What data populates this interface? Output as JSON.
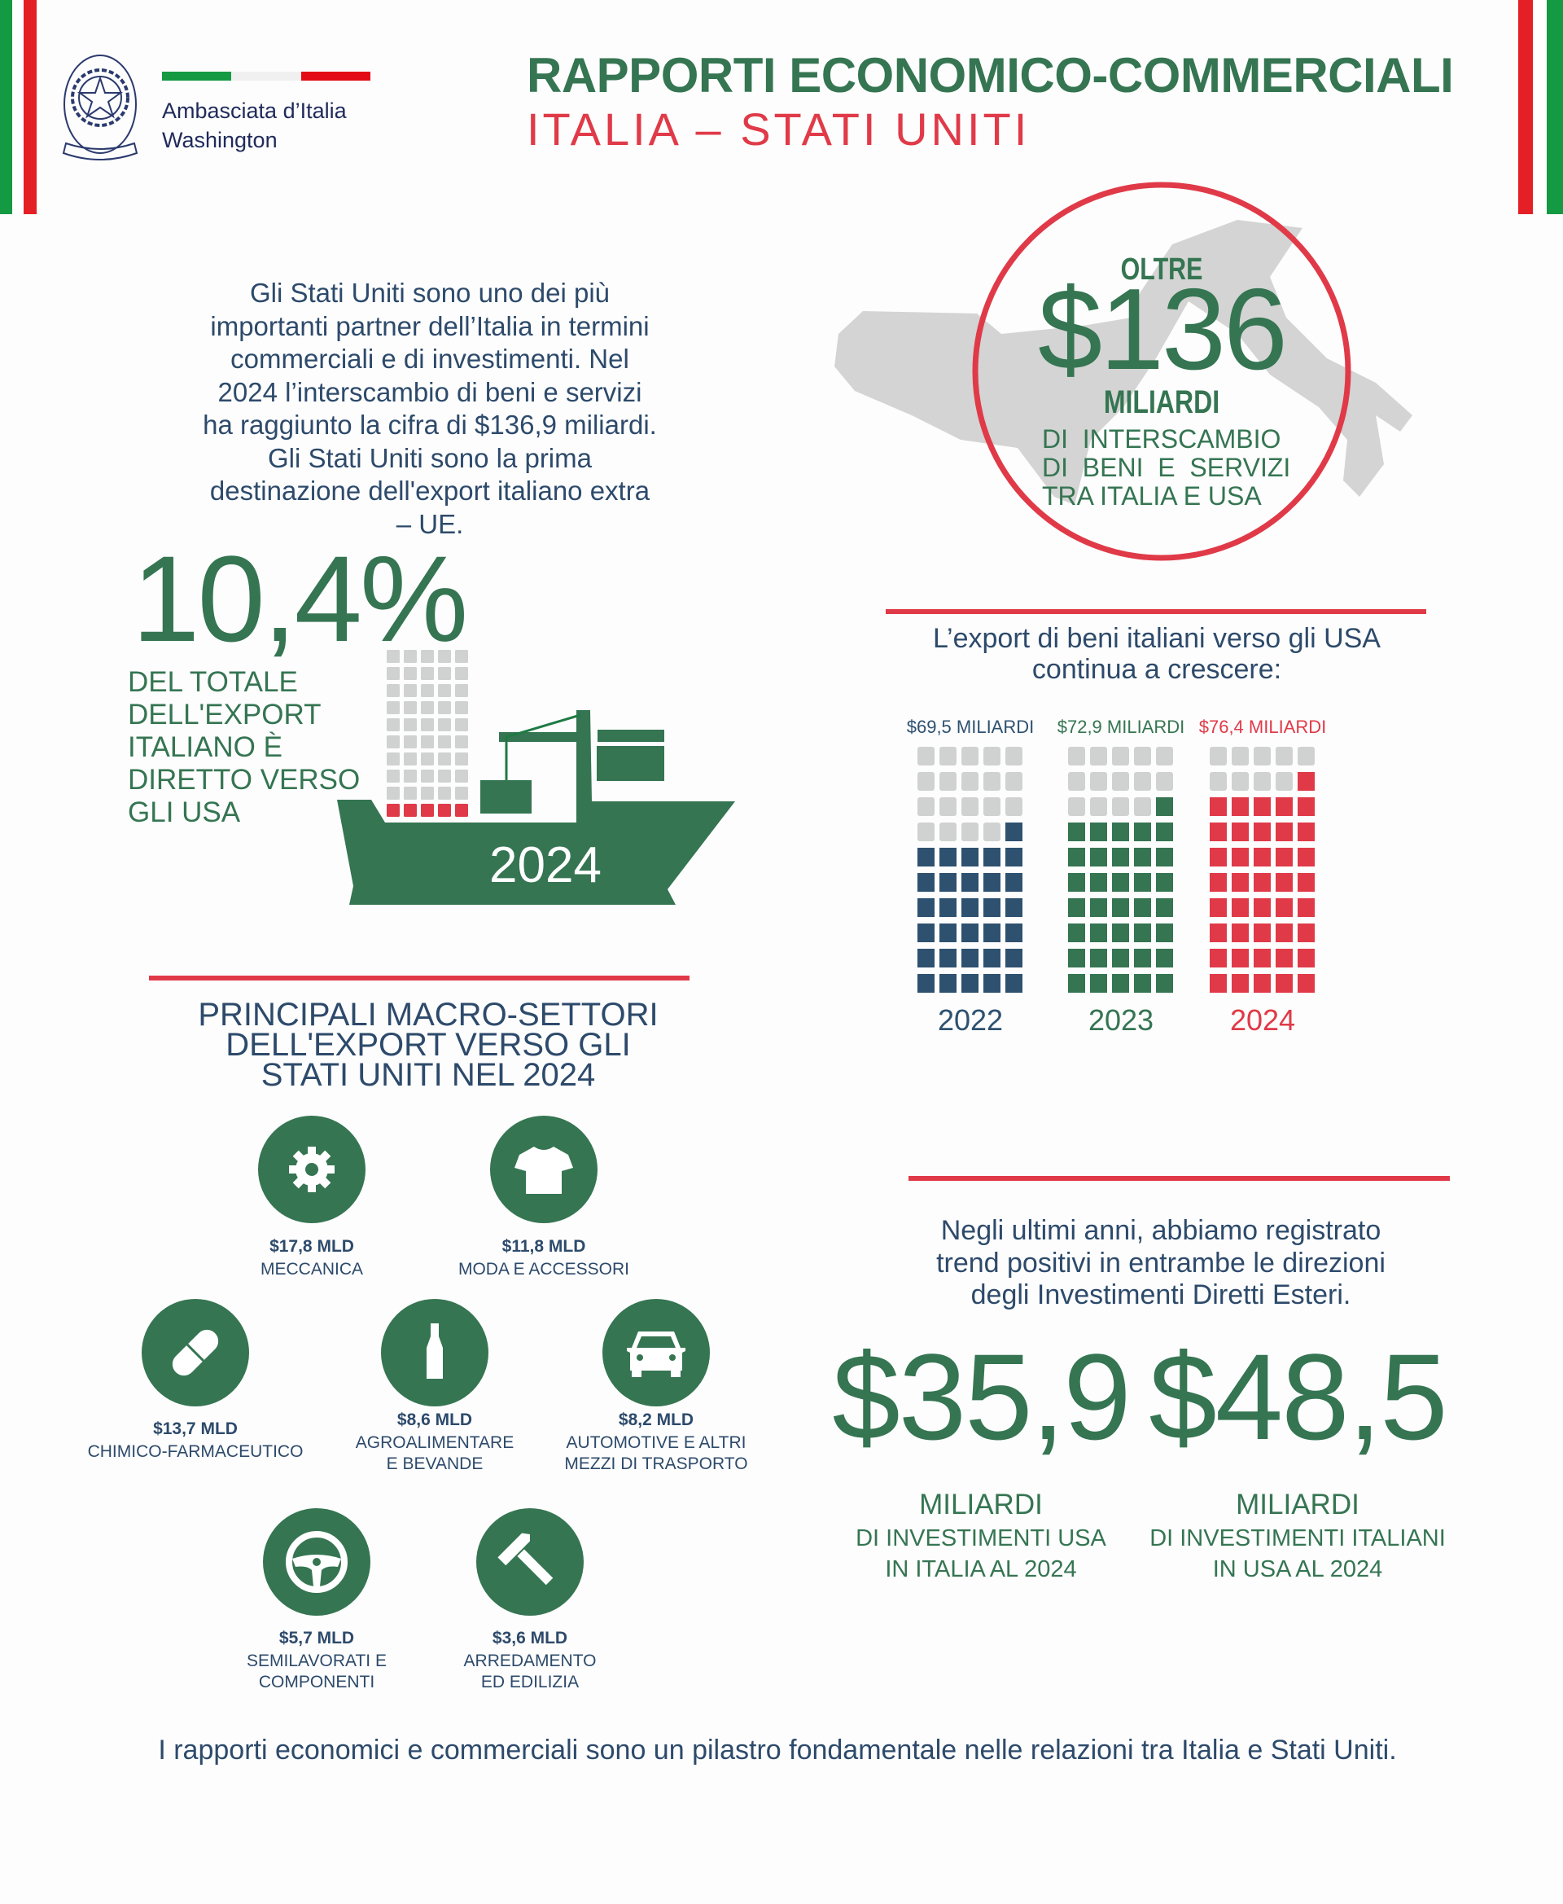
{
  "colors": {
    "green": "#357552",
    "red": "#e03a48",
    "navy": "#2d4a6b",
    "navy_squares": "#2e5170",
    "gray": "#d0d2d1"
  },
  "header": {
    "embassy_line1": "Ambasciata d’Italia",
    "embassy_line2": "Washington",
    "emblem_text": "REPVBBLICA ITALIANA",
    "title": "RAPPORTI ECONOMICO-COMMERCIALI",
    "subtitle": "ITALIA – STATI UNITI"
  },
  "intro": {
    "lines": [
      "Gli Stati Uniti sono uno dei più",
      "importanti partner dell’Italia in termini",
      "commerciali e di investimenti. Nel",
      "2024 l’interscambio di beni e servizi",
      "ha raggiunto la cifra di $136,9 miliardi.",
      "Gli Stati Uniti sono la prima",
      "destinazione dell'export italiano extra",
      "– UE."
    ]
  },
  "export_share": {
    "value": "10,4%",
    "lines": [
      "DEL TOTALE",
      "DELL'EXPORT",
      "ITALIANO È",
      "DIRETTO VERSO",
      "GLI USA"
    ],
    "ship_year": "2024",
    "containers_highlighted": 5,
    "containers_total": 50
  },
  "interscambio": {
    "prefix": "OLTRE",
    "value": "$136",
    "unit": "MILIARDI",
    "lines": [
      "DI  INTERSCAMBIO",
      "DI  BENI  E  SERVIZI",
      "TRA ITALIA E USA"
    ]
  },
  "export_trend": {
    "heading_lines": [
      "L’export di beni italiani verso gli USA",
      "continua a crescere:"
    ]
  },
  "chart_data": {
    "type": "waffle",
    "categories": [
      "2022",
      "2023",
      "2024"
    ],
    "values": [
      69.5,
      72.9,
      76.4
    ],
    "value_labels": [
      "$69,5 MILIARDI",
      "$72,9 MILIARDI",
      "$76,4 MILIARDI"
    ],
    "filled_cells": [
      31,
      36,
      41
    ],
    "total_cells": 50,
    "series_colors": [
      "#2e5170",
      "#357552",
      "#e03a48"
    ]
  },
  "sectors": {
    "title_lines": [
      "PRINCIPALI MACRO-SETTORI",
      "DELL'EXPORT VERSO GLI",
      "STATI UNITI NEL 2024"
    ],
    "items": [
      {
        "icon": "gear-icon",
        "value": "$17,8 MLD",
        "label_lines": [
          "MECCANICA"
        ]
      },
      {
        "icon": "tshirt-icon",
        "value": "$11,8 MLD",
        "label_lines": [
          "MODA E ACCESSORI"
        ]
      },
      {
        "icon": "pill-icon",
        "value": "$13,7 MLD",
        "label_lines": [
          "CHIMICO-FARMACEUTICO"
        ]
      },
      {
        "icon": "bottle-icon",
        "value": "$8,6 MLD",
        "label_lines": [
          "AGROALIMENTARE",
          "E BEVANDE"
        ]
      },
      {
        "icon": "car-icon",
        "value": "$8,2 MLD",
        "label_lines": [
          "AUTOMOTIVE E ALTRI",
          "MEZZI DI TRASPORTO"
        ]
      },
      {
        "icon": "steering-wheel-icon",
        "value": "$5,7 MLD",
        "label_lines": [
          "SEMILAVORATI E",
          "COMPONENTI"
        ]
      },
      {
        "icon": "hammer-icon",
        "value": "$3,6 MLD",
        "label_lines": [
          "ARREDAMENTO",
          "ED EDILIZIA"
        ]
      }
    ]
  },
  "investments": {
    "intro_lines": [
      "Negli ultimi anni, abbiamo registrato",
      "trend positivi in entrambe le direzioni",
      "degli Investimenti Diretti Esteri."
    ],
    "items": [
      {
        "value": "$35,9",
        "unit": "MILIARDI",
        "lines": [
          "DI INVESTIMENTI USA",
          "IN ITALIA AL 2024"
        ]
      },
      {
        "value": "$48,5",
        "unit": "MILIARDI",
        "lines": [
          "DI INVESTIMENTI ITALIANI",
          "IN USA AL 2024"
        ]
      }
    ]
  },
  "footer": {
    "text": "I rapporti economici e commerciali sono un pilastro fondamentale nelle relazioni tra Italia e Stati Uniti."
  }
}
